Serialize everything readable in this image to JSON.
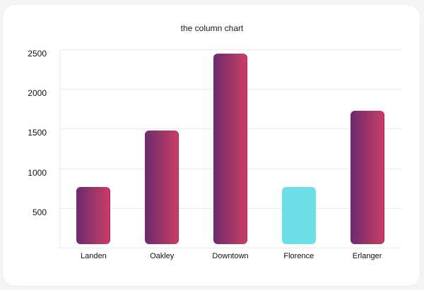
{
  "chart_data": {
    "type": "bar",
    "title": "the column chart",
    "categories": [
      "Landen",
      "Oakley",
      "Downtown",
      "Florence",
      "Erlanger"
    ],
    "values": [
      765,
      1480,
      2450,
      765,
      1730
    ],
    "highlighted_index": 3,
    "xlabel": "",
    "ylabel": "",
    "ylim": [
      0,
      2500
    ],
    "yticks": [
      500,
      1000,
      1500,
      2000,
      2500
    ],
    "grid": true,
    "legend": "none",
    "colors": {
      "bar_gradient_start": "#6b2a6f",
      "bar_gradient_end": "#c63e67",
      "highlight": "#6bdfe5",
      "grid": "#ebebeb"
    }
  },
  "labels": {
    "title": "the column chart",
    "yticks": [
      "2500",
      "2000",
      "1500",
      "1000",
      "500"
    ],
    "xticks": [
      "Landen",
      "Oakley",
      "Downtown",
      "Florence",
      "Erlanger"
    ]
  }
}
